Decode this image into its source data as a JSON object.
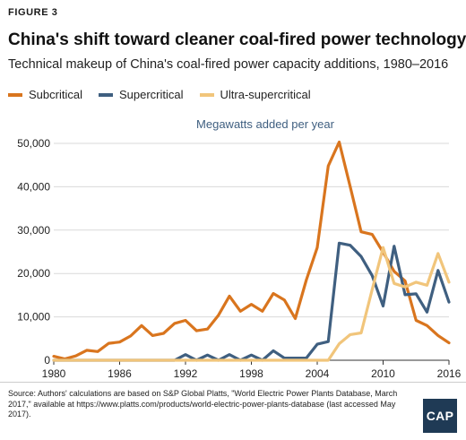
{
  "figure_label": "FIGURE 3",
  "title": "China's shift toward cleaner coal-fired power technology",
  "subtitle": "Technical makeup of China's coal-fired power capacity additions, 1980–2016",
  "source": "Source: Authors' calculations are based on S&P Global Platts, \"World Electric Power Plants Database, March 2017,\" available at https://www.platts.com/products/world-electric-power-plants-database (last accessed May 2017).",
  "logo": "CAP",
  "colors": {
    "subcritical": "#d9751e",
    "supercritical": "#3f5f80",
    "ultra_supercritical": "#f1c57b",
    "axis_label": "#3f5f80",
    "grid": "#d9d9d9"
  },
  "chart_data": {
    "type": "line",
    "title": "Megawatts added per year",
    "xlabel": "",
    "ylabel": "",
    "xlim": [
      1980,
      2016
    ],
    "ylim": [
      0,
      50000
    ],
    "x_ticks": [
      "1980",
      "1986",
      "1992",
      "1998",
      "2004",
      "2010",
      "2016"
    ],
    "y_ticks": [
      "0",
      "10,000",
      "20,000",
      "30,000",
      "40,000",
      "50,000"
    ],
    "legend_position": "top-left",
    "grid": true,
    "x": [
      1980,
      1981,
      1982,
      1983,
      1984,
      1985,
      1986,
      1987,
      1988,
      1989,
      1990,
      1991,
      1992,
      1993,
      1994,
      1995,
      1996,
      1997,
      1998,
      1999,
      2000,
      2001,
      2002,
      2003,
      2004,
      2005,
      2006,
      2007,
      2008,
      2009,
      2010,
      2011,
      2012,
      2013,
      2014,
      2015,
      2016
    ],
    "series": [
      {
        "name": "Subcritical",
        "key": "subcritical",
        "values": [
          900,
          300,
          1000,
          2300,
          2000,
          3900,
          4200,
          5600,
          8000,
          5700,
          6200,
          8500,
          9200,
          6800,
          7200,
          10400,
          14800,
          11300,
          12900,
          11300,
          15400,
          13900,
          9600,
          18500,
          26000,
          44800,
          50300,
          40000,
          29600,
          29000,
          24900,
          20500,
          18300,
          9200,
          8000,
          5700,
          4000
        ]
      },
      {
        "name": "Supercritical",
        "key": "supercritical",
        "values": [
          0,
          0,
          0,
          0,
          0,
          0,
          0,
          0,
          0,
          0,
          0,
          0,
          1300,
          0,
          1200,
          0,
          1300,
          0,
          1200,
          0,
          2200,
          500,
          500,
          500,
          3700,
          4300,
          27000,
          26500,
          23900,
          19500,
          12500,
          26300,
          15100,
          15300,
          11100,
          20700,
          13400
        ]
      },
      {
        "name": "Ultra-supercritical",
        "key": "ultra_supercritical",
        "values": [
          0,
          0,
          0,
          0,
          0,
          0,
          0,
          0,
          0,
          0,
          0,
          0,
          0,
          0,
          0,
          0,
          0,
          0,
          0,
          0,
          0,
          0,
          0,
          0,
          0,
          0,
          3800,
          5900,
          6300,
          16300,
          26000,
          17700,
          16900,
          18000,
          17300,
          24600,
          18000
        ]
      }
    ]
  }
}
